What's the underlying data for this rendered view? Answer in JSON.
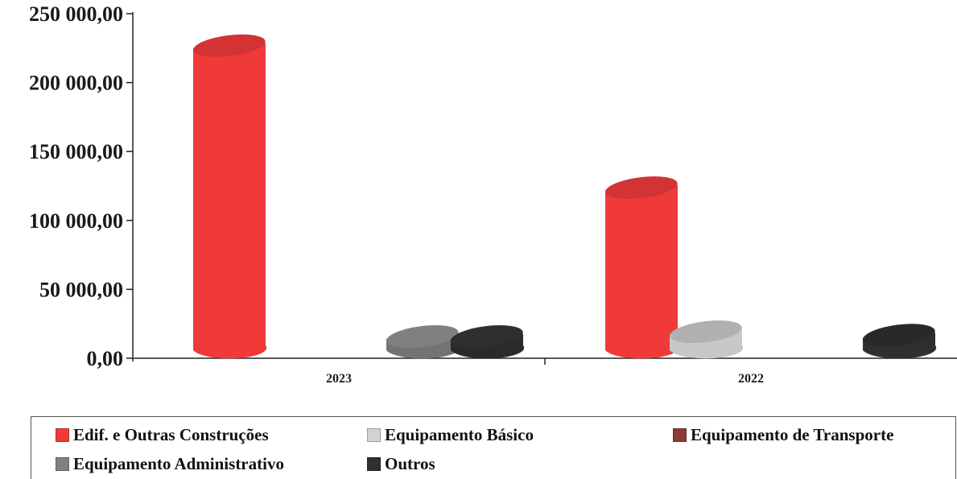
{
  "chart_data": {
    "type": "bar",
    "categories": [
      "2023",
      "2022"
    ],
    "series": [
      {
        "name": "Edif. e Outras Construções",
        "values": [
          225000,
          122000
        ],
        "color": "#f03a3a"
      },
      {
        "name": "Equipamento Básico",
        "values": [
          0,
          17500
        ],
        "color": "#c8c8c8"
      },
      {
        "name": "Equipamento de Transporte",
        "values": [
          0,
          0
        ],
        "color": "#8a3a3a"
      },
      {
        "name": "Equipamento Administrativo",
        "values": [
          10000,
          0
        ],
        "color": "#808080"
      },
      {
        "name": "Outros",
        "values": [
          6000,
          15000
        ],
        "color": "#2f2f2f"
      }
    ],
    "yticks": [
      "0,00",
      "50 000,00",
      "100 000,00",
      "150 000,00",
      "200 000,00",
      "250 000,00"
    ],
    "ylim": [
      0,
      250000
    ],
    "legend_position": "bottom",
    "grid": false
  }
}
